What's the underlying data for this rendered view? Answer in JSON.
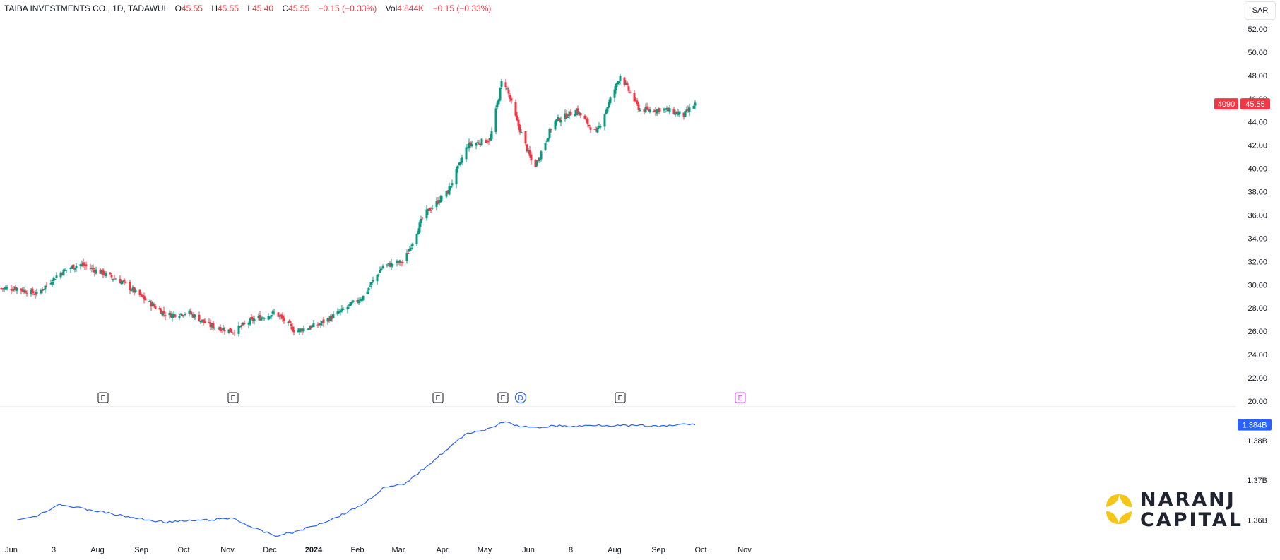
{
  "header": {
    "symbol": "TAIBA INVESTMENTS CO., 1D, TADAWUL",
    "open_key": "O",
    "open": "45.55",
    "high_key": "H",
    "high": "45.55",
    "low_key": "L",
    "low": "45.40",
    "close_key": "C",
    "close": "45.55",
    "change": "−0.15 (−0.33%)",
    "vol_key": "Vol",
    "vol": "4.844K",
    "vol_change": "−0.15 (−0.33%)"
  },
  "currency": "SAR",
  "price_labels": {
    "countdown": "4090",
    "last": "45.55",
    "obv_last": "1.384B"
  },
  "logo": {
    "line1": "NARANJ",
    "line2": "CAPITAL"
  },
  "colors": {
    "up": "#089981",
    "down": "#f23645",
    "obv": "#2962ff",
    "earnings_future": "#e040fb"
  },
  "chart_data": [
    {
      "type": "candlestick",
      "title": "TAIBA INVESTMENTS CO., 1D, TADAWUL",
      "ylim": [
        20,
        54
      ],
      "yticks": [
        "20.00",
        "22.00",
        "24.00",
        "26.00",
        "28.00",
        "30.00",
        "32.00",
        "34.00",
        "36.00",
        "38.00",
        "40.00",
        "42.00",
        "44.00",
        "46.00",
        "48.00",
        "50.00",
        "52.00"
      ],
      "xticks": [
        "Jun",
        "3",
        "Aug",
        "Sep",
        "Oct",
        "Nov",
        "Dec",
        "2024",
        "Feb",
        "Mar",
        "Apr",
        "May",
        "Jun",
        "8",
        "Aug",
        "Sep",
        "Oct",
        "Nov"
      ],
      "x": [
        "2023-06-01",
        "2023-06-15",
        "2023-07-01",
        "2023-07-15",
        "2023-08-01",
        "2023-08-15",
        "2023-09-01",
        "2023-09-15",
        "2023-10-01",
        "2023-10-15",
        "2023-11-01",
        "2023-11-15",
        "2023-12-01",
        "2023-12-15",
        "2024-01-01",
        "2024-01-15",
        "2024-02-01",
        "2024-02-15",
        "2024-03-01",
        "2024-03-15",
        "2024-04-01",
        "2024-04-15",
        "2024-05-01",
        "2024-05-10",
        "2024-05-20",
        "2024-06-01",
        "2024-06-15",
        "2024-07-01",
        "2024-07-15",
        "2024-08-01",
        "2024-08-15",
        "2024-09-01",
        "2024-09-15",
        "2024-09-23"
      ],
      "close": [
        29.7,
        29.2,
        31.0,
        31.8,
        31.0,
        30.2,
        28.6,
        27.4,
        27.6,
        26.5,
        26.0,
        27.0,
        27.6,
        26.0,
        26.6,
        27.6,
        29.0,
        31.6,
        32.0,
        36.0,
        38.0,
        42.0,
        42.5,
        48.0,
        44.0,
        40.0,
        44.0,
        45.0,
        43.0,
        48.0,
        45.0,
        45.1,
        44.6,
        45.55
      ],
      "earnings_markers": [
        "2023-08-01",
        "2023-11-01",
        "2024-03-25",
        "2024-05-10",
        "2024-08-01",
        "2024-10-25"
      ],
      "dividend_markers": [
        "2024-05-20"
      ],
      "last_price": 45.55
    },
    {
      "type": "line",
      "series": [
        {
          "name": "",
          "values": [
            1.36,
            1.361,
            1.364,
            1.363,
            1.362,
            1.361,
            1.36,
            1.3595,
            1.3598,
            1.36,
            1.3605,
            1.358,
            1.356,
            1.357,
            1.359,
            1.361,
            1.364,
            1.368,
            1.369,
            1.373,
            1.378,
            1.382,
            1.383,
            1.3848,
            1.3838,
            1.3832,
            1.3838,
            1.3836,
            1.384,
            1.3838,
            1.3838,
            1.3836,
            1.3842,
            1.384
          ]
        }
      ],
      "ylim": [
        1.354,
        1.3875
      ],
      "yticks": [
        "1.36B",
        "1.37B",
        "1.38B"
      ],
      "last_value": "1.384B"
    }
  ]
}
